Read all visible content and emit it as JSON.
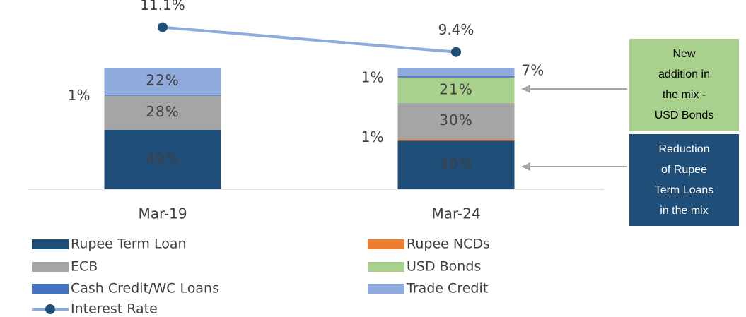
{
  "chart_data": {
    "type": "bar",
    "stacked": true,
    "categories": [
      "Mar-19",
      "Mar-24"
    ],
    "ylim": [
      0,
      100
    ],
    "y2lim": [
      0,
      12
    ],
    "series": [
      {
        "name": "Rupee Term Loan",
        "color": "#1f4e79",
        "values": [
          49,
          40
        ],
        "value_labels": [
          "49%",
          "40%"
        ]
      },
      {
        "name": "Rupee NCDs",
        "color": "#ed7d31",
        "values": [
          null,
          1
        ],
        "value_labels": [
          null,
          "1%"
        ]
      },
      {
        "name": "ECB",
        "color": "#a5a5a5",
        "values": [
          28,
          30
        ],
        "value_labels": [
          "28%",
          "30%"
        ]
      },
      {
        "name": "USD Bonds",
        "color": "#a9d18e",
        "values": [
          null,
          21
        ],
        "value_labels": [
          null,
          "21%"
        ]
      },
      {
        "name": "Cash Credit/WC Loans",
        "color": "#4472c4",
        "values": [
          1,
          1
        ],
        "value_labels": [
          "1%",
          "1%"
        ]
      },
      {
        "name": "Trade Credit",
        "color": "#8faadc",
        "values": [
          22,
          7
        ],
        "value_labels": [
          "22%",
          "7%"
        ]
      },
      {
        "name": "Interest Rate",
        "color": "#8faadc",
        "marker_color": "#1f4e79",
        "type": "line",
        "axis": "y2",
        "values": [
          11.1,
          9.4
        ],
        "value_labels": [
          "11.1%",
          "9.4%"
        ]
      }
    ],
    "annotations": [
      {
        "lines": [
          "New",
          "addition in",
          "the mix -",
          "USD Bonds"
        ],
        "color": "#a9d18e",
        "text_color": "#000000"
      },
      {
        "lines": [
          "Reduction",
          "of Rupee",
          "Term Loans",
          "in the mix"
        ],
        "color": "#1f4e79",
        "text_color": "#ffffff"
      }
    ]
  }
}
